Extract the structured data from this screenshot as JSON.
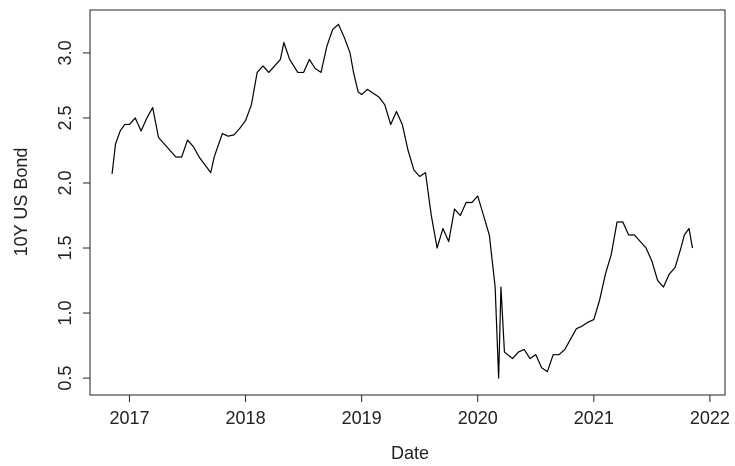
{
  "chart_data": {
    "type": "line",
    "xlabel": "Date",
    "ylabel": "10Y US Bond",
    "color": "#000000",
    "x": [
      2016.85,
      2016.88,
      2016.92,
      2016.96,
      2017.0,
      2017.05,
      2017.1,
      2017.15,
      2017.2,
      2017.25,
      2017.3,
      2017.4,
      2017.45,
      2017.5,
      2017.55,
      2017.6,
      2017.7,
      2017.73,
      2017.8,
      2017.85,
      2017.9,
      2017.95,
      2018.0,
      2018.05,
      2018.1,
      2018.15,
      2018.2,
      2018.3,
      2018.33,
      2018.38,
      2018.45,
      2018.5,
      2018.55,
      2018.6,
      2018.65,
      2018.7,
      2018.75,
      2018.8,
      2018.85,
      2018.9,
      2018.93,
      2018.97,
      2019.0,
      2019.05,
      2019.15,
      2019.2,
      2019.25,
      2019.3,
      2019.35,
      2019.4,
      2019.45,
      2019.5,
      2019.55,
      2019.6,
      2019.65,
      2019.7,
      2019.75,
      2019.8,
      2019.85,
      2019.9,
      2019.95,
      2020.0,
      2020.05,
      2020.1,
      2020.15,
      2020.18,
      2020.2,
      2020.23,
      2020.3,
      2020.35,
      2020.4,
      2020.45,
      2020.5,
      2020.55,
      2020.6,
      2020.65,
      2020.7,
      2020.75,
      2020.8,
      2020.85,
      2020.9,
      2020.95,
      2021.0,
      2021.05,
      2021.1,
      2021.15,
      2021.2,
      2021.25,
      2021.3,
      2021.35,
      2021.4,
      2021.45,
      2021.5,
      2021.55,
      2021.6,
      2021.65,
      2021.7,
      2021.75,
      2021.78,
      2021.82,
      2021.85
    ],
    "values": [
      2.07,
      2.3,
      2.4,
      2.45,
      2.45,
      2.5,
      2.4,
      2.5,
      2.58,
      2.35,
      2.3,
      2.2,
      2.2,
      2.33,
      2.28,
      2.2,
      2.08,
      2.2,
      2.38,
      2.36,
      2.37,
      2.42,
      2.48,
      2.6,
      2.85,
      2.9,
      2.85,
      2.95,
      3.08,
      2.95,
      2.85,
      2.85,
      2.95,
      2.88,
      2.85,
      3.05,
      3.18,
      3.22,
      3.12,
      3.0,
      2.85,
      2.7,
      2.68,
      2.72,
      2.66,
      2.6,
      2.45,
      2.55,
      2.45,
      2.25,
      2.1,
      2.05,
      2.08,
      1.75,
      1.5,
      1.65,
      1.55,
      1.8,
      1.75,
      1.85,
      1.85,
      1.9,
      1.75,
      1.6,
      1.2,
      0.5,
      1.2,
      0.7,
      0.65,
      0.7,
      0.72,
      0.65,
      0.68,
      0.58,
      0.55,
      0.68,
      0.68,
      0.72,
      0.8,
      0.88,
      0.9,
      0.93,
      0.95,
      1.1,
      1.3,
      1.45,
      1.7,
      1.7,
      1.6,
      1.6,
      1.55,
      1.5,
      1.4,
      1.25,
      1.2,
      1.3,
      1.35,
      1.5,
      1.6,
      1.65,
      1.5
    ],
    "xlim": [
      2016.66,
      2022.13
    ],
    "xticks": [
      2017,
      2018,
      2019,
      2020,
      2021,
      2022
    ],
    "ylim": [
      0.37,
      3.33
    ],
    "yticks": [
      0.5,
      {
        "value": 1,
        "label": "1.0"
      },
      1.5,
      {
        "value": 2,
        "label": "2.0"
      },
      2.5,
      {
        "value": 3,
        "label": "3.0"
      }
    ]
  }
}
